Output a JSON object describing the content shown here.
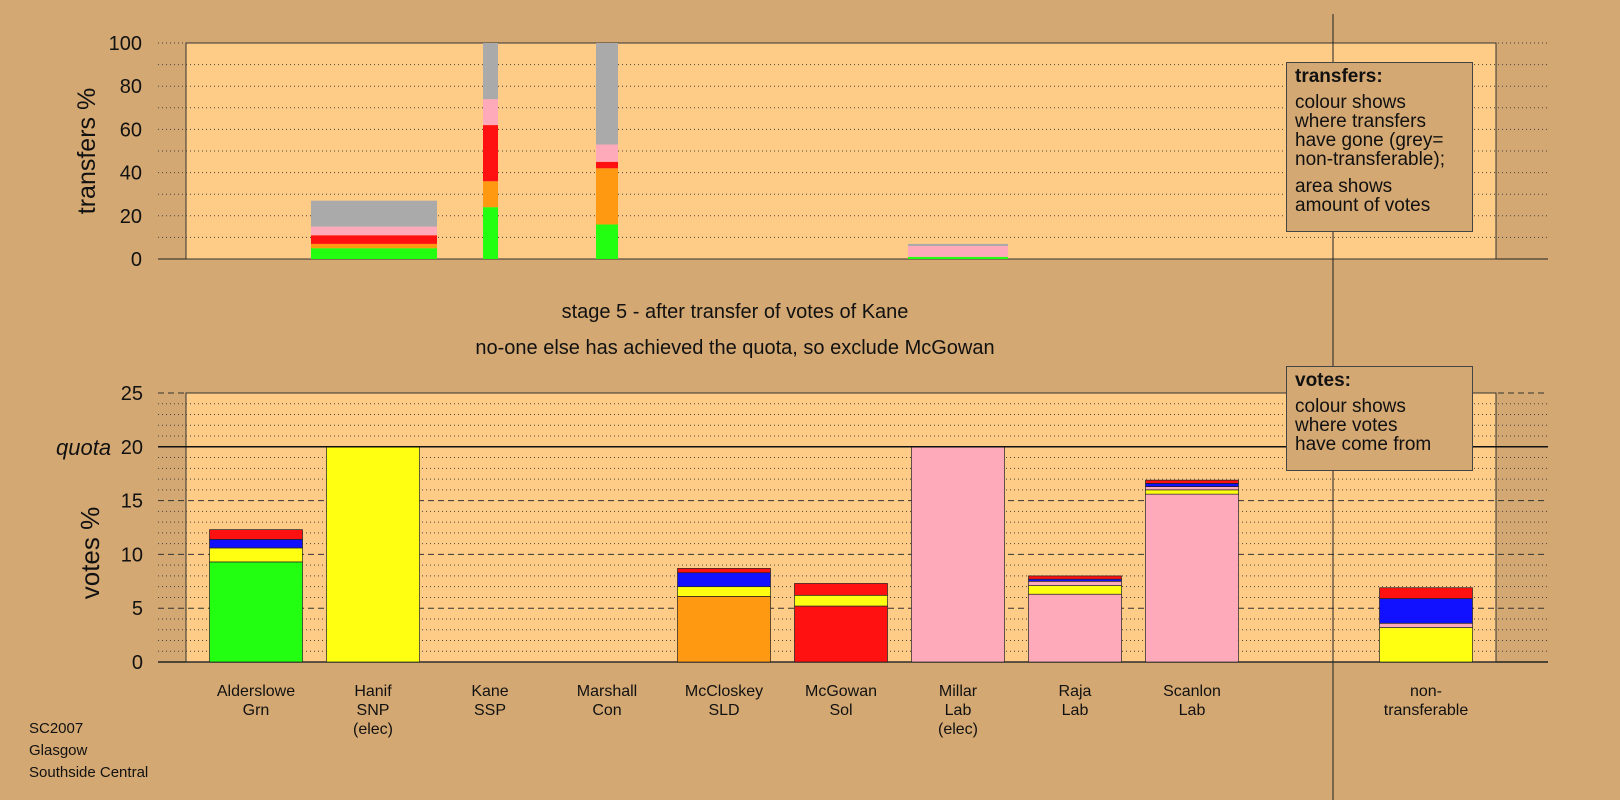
{
  "chart_data": [
    {
      "type": "bar",
      "stacked": true,
      "ylabel": "transfers %",
      "ylim": [
        0,
        100
      ],
      "yticks": [
        0,
        20,
        40,
        60,
        80,
        100
      ],
      "grid": true,
      "note": "transfer bar widths proportional to amount of votes transferred",
      "segment_colors": [
        "#22ff11",
        "#ff9911",
        "#ff1111",
        "#ffaabb",
        "#aaaaaa"
      ],
      "bars": [
        {
          "category": "Hanif SNP",
          "segments": [
            5,
            2,
            4,
            4,
            12
          ]
        },
        {
          "category": "Kane SSP",
          "segments": [
            24,
            12,
            26,
            12,
            26
          ]
        },
        {
          "category": "Marshall Con",
          "segments": [
            16,
            26,
            3,
            8,
            47
          ]
        },
        {
          "category": "Millar Lab",
          "segments": [
            1,
            0,
            0,
            5,
            1
          ]
        }
      ]
    },
    {
      "type": "bar",
      "stacked": true,
      "ylabel": "votes %",
      "ylim": [
        0,
        25
      ],
      "yticks": [
        0,
        5,
        10,
        15,
        20,
        25
      ],
      "quota": 20,
      "quota_label": "quota",
      "grid": true,
      "categories": [
        "Alderslowe Grn",
        "Hanif SNP (elec)",
        "Kane SSP",
        "Marshall Con",
        "McCloskey SLD",
        "McGowan Sol",
        "Millar Lab (elec)",
        "Raja Lab",
        "Scanlon Lab",
        "non-transferable"
      ],
      "bars": [
        {
          "category": "Alderslowe Grn",
          "segments": [
            {
              "color": "#22ff11",
              "value": 9.3
            },
            {
              "color": "#ffff11",
              "value": 1.3
            },
            {
              "color": "#1111ff",
              "value": 0.8
            },
            {
              "color": "#ff1111",
              "value": 0.9
            }
          ]
        },
        {
          "category": "Hanif SNP (elec)",
          "segments": [
            {
              "color": "#ffff11",
              "value": 20.0
            }
          ]
        },
        {
          "category": "Kane SSP",
          "segments": []
        },
        {
          "category": "Marshall Con",
          "segments": []
        },
        {
          "category": "McCloskey SLD",
          "segments": [
            {
              "color": "#ff9911",
              "value": 6.1
            },
            {
              "color": "#ffff11",
              "value": 0.9
            },
            {
              "color": "#1111ff",
              "value": 1.3
            },
            {
              "color": "#ff1111",
              "value": 0.4
            }
          ]
        },
        {
          "category": "McGowan Sol",
          "segments": [
            {
              "color": "#ff1111",
              "value": 5.2
            },
            {
              "color": "#ffff11",
              "value": 1.0
            },
            {
              "color": "#ff1111",
              "value": 1.1
            }
          ]
        },
        {
          "category": "Millar Lab (elec)",
          "segments": [
            {
              "color": "#ffaabb",
              "value": 20.0
            }
          ]
        },
        {
          "category": "Raja Lab",
          "segments": [
            {
              "color": "#ffaabb",
              "value": 6.3
            },
            {
              "color": "#ffff11",
              "value": 0.8
            },
            {
              "color": "#ffaabb",
              "value": 0.4
            },
            {
              "color": "#1111ff",
              "value": 0.2
            },
            {
              "color": "#ff1111",
              "value": 0.3
            }
          ]
        },
        {
          "category": "Scanlon Lab",
          "segments": [
            {
              "color": "#ffaabb",
              "value": 15.6
            },
            {
              "color": "#ffff11",
              "value": 0.4
            },
            {
              "color": "#ffaabb",
              "value": 0.3
            },
            {
              "color": "#1111ff",
              "value": 0.3
            },
            {
              "color": "#ff1111",
              "value": 0.3
            }
          ]
        },
        {
          "category": "non-transferable",
          "segments": [
            {
              "color": "#ffff11",
              "value": 3.2
            },
            {
              "color": "#ffaabb",
              "value": 0.4
            },
            {
              "color": "#1111ff",
              "value": 2.3
            },
            {
              "color": "#ff1111",
              "value": 1.0
            }
          ]
        }
      ]
    }
  ],
  "candidates": [
    {
      "name": "Alderslowe",
      "party": "Grn",
      "note": ""
    },
    {
      "name": "Hanif",
      "party": "SNP",
      "note": "(elec)"
    },
    {
      "name": "Kane",
      "party": "SSP",
      "note": ""
    },
    {
      "name": "Marshall",
      "party": "Con",
      "note": ""
    },
    {
      "name": "McCloskey",
      "party": "SLD",
      "note": ""
    },
    {
      "name": "McGowan",
      "party": "Sol",
      "note": ""
    },
    {
      "name": "Millar",
      "party": "Lab",
      "note": "(elec)"
    },
    {
      "name": "Raja",
      "party": "Lab",
      "note": ""
    },
    {
      "name": "Scanlon",
      "party": "Lab",
      "note": ""
    },
    {
      "name": "non-",
      "party": "transferable",
      "note": ""
    }
  ],
  "stage_title": "stage 5 - after transfer of votes of Kane",
  "stage_subtitle": "no-one else has achieved the quota, so exclude McGowan",
  "legend_transfers": {
    "title": "transfers:",
    "lines_a": [
      "colour shows",
      "where transfers",
      "have gone (grey=",
      "non-transferable);"
    ],
    "lines_b": [
      "area shows",
      "amount of votes"
    ]
  },
  "legend_votes": {
    "title": "votes:",
    "lines": [
      "colour shows",
      "where votes",
      "have come from"
    ]
  },
  "footer": {
    "line1": "SC2007",
    "line2": "Glasgow",
    "line3": "Southside Central"
  },
  "colors": {
    "background": "#d4a872",
    "plot_area": "#ffcc88"
  }
}
